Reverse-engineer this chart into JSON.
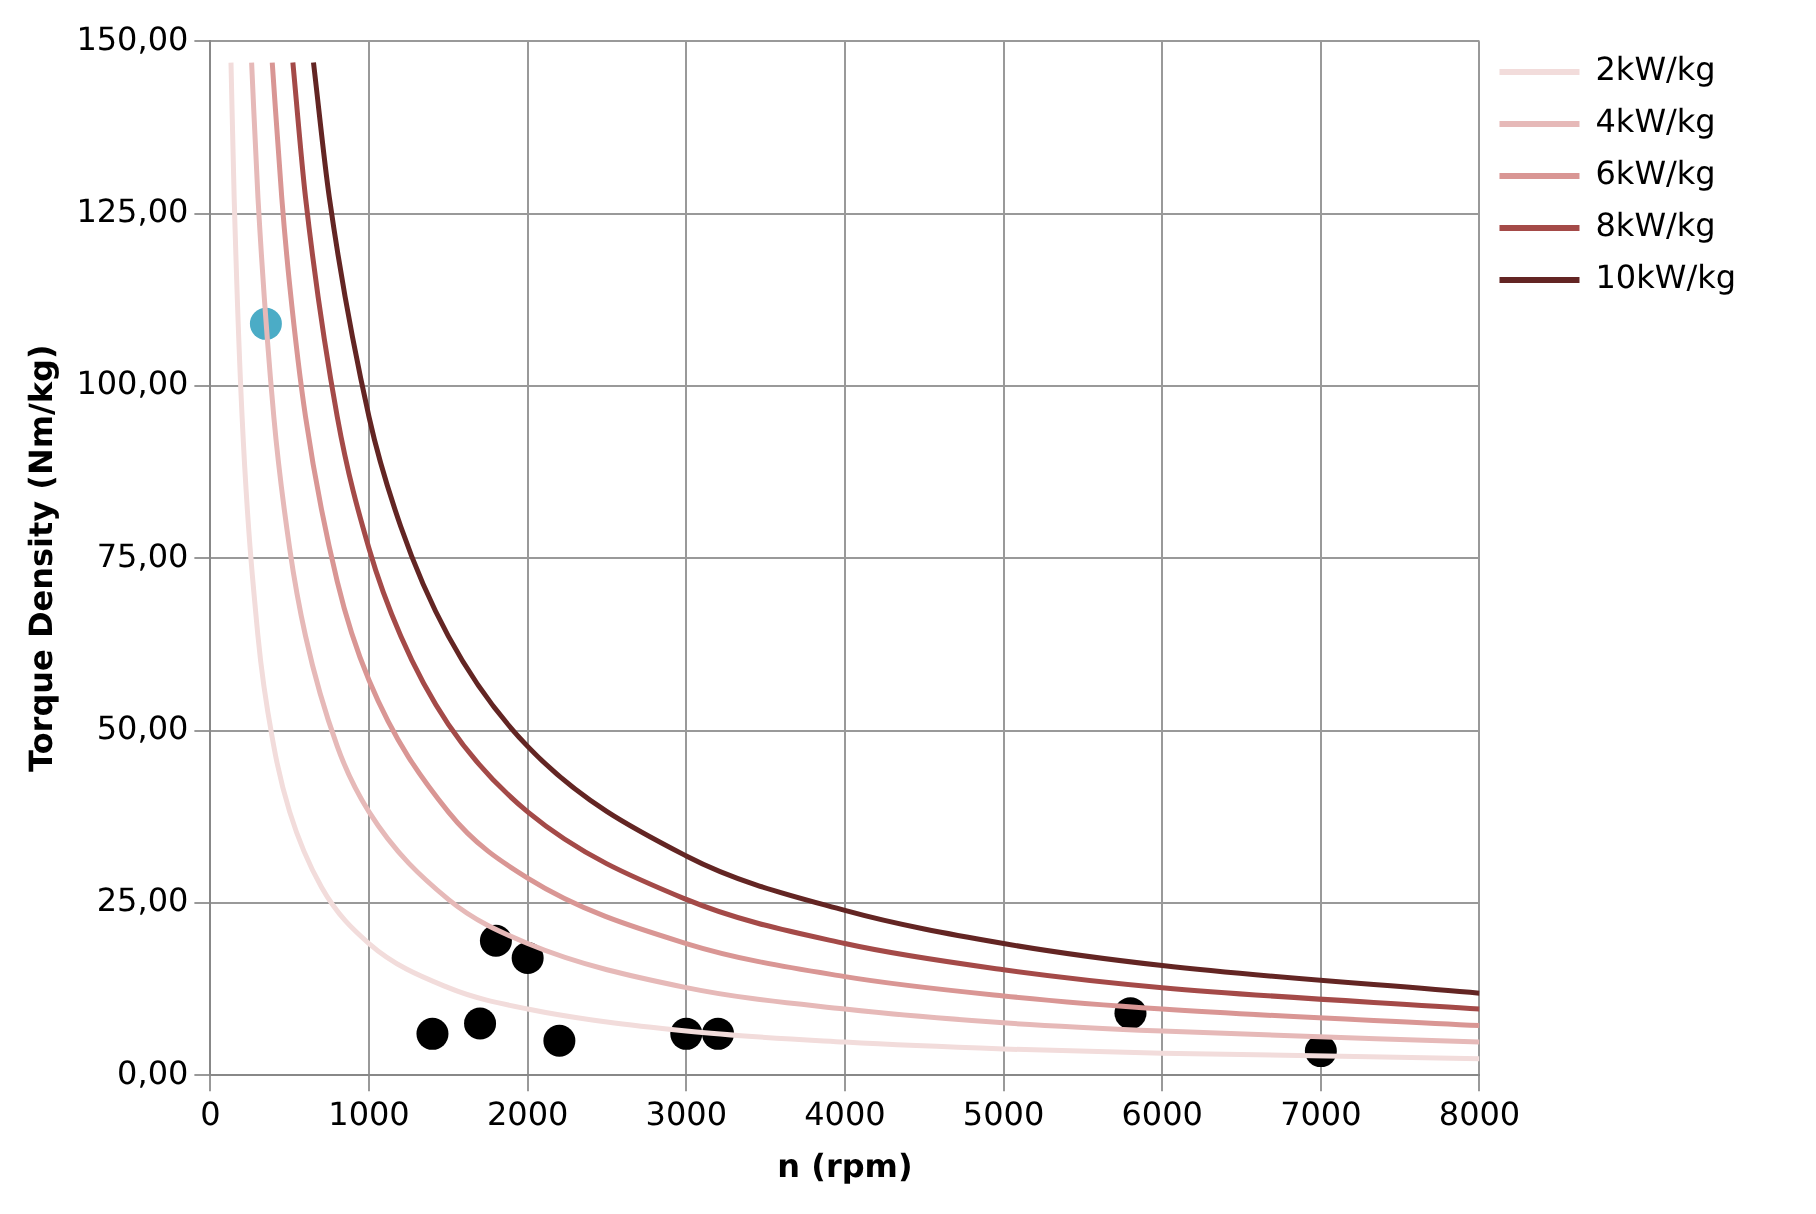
{
  "chart_data": {
    "type": "line",
    "xlabel": "n (rpm)",
    "ylabel": "Torque Density (Nm/kg)",
    "xlim": [
      0,
      8000
    ],
    "xticks": [
      0,
      1000,
      2000,
      3000,
      4000,
      5000,
      6000,
      7000,
      8000
    ],
    "ylim": [
      0,
      150
    ],
    "yticks": [
      {
        "value": 0,
        "label": "0,00"
      },
      {
        "value": 25,
        "label": "25,00"
      },
      {
        "value": 50,
        "label": "50,00"
      },
      {
        "value": 75,
        "label": "75,00"
      },
      {
        "value": 100,
        "label": "100,00"
      },
      {
        "value": 125,
        "label": "125,00"
      },
      {
        "value": 150,
        "label": "150,00"
      }
    ],
    "grid": true,
    "legend": "top right",
    "line_style": "solid",
    "series": [
      {
        "name": "2kW/kg",
        "marker": "none",
        "color": "#f2dcdb",
        "x": [
          130,
          150,
          200,
          300,
          400,
          500,
          700,
          1000,
          1500,
          2000,
          3000,
          4000,
          5000,
          6000,
          8000
        ],
        "values": [
          146.9,
          127.3,
          95.5,
          63.7,
          47.7,
          38.2,
          27.3,
          19.1,
          12.7,
          9.6,
          6.4,
          4.8,
          3.8,
          3.2,
          2.4
        ]
      },
      {
        "name": "4kW/kg",
        "marker": "none",
        "color": "#e6b9b8",
        "x": [
          260,
          300,
          400,
          500,
          600,
          800,
          1000,
          1500,
          2000,
          3000,
          4000,
          5000,
          6000,
          8000
        ],
        "values": [
          146.9,
          127.3,
          95.5,
          76.4,
          63.7,
          47.7,
          38.2,
          25.5,
          19.1,
          12.7,
          9.6,
          7.6,
          6.4,
          4.8
        ]
      },
      {
        "name": "6kW/kg",
        "marker": "none",
        "color": "#d99694",
        "x": [
          390,
          450,
          500,
          600,
          800,
          1000,
          1500,
          2000,
          3000,
          4000,
          5000,
          6000,
          8000
        ],
        "values": [
          146.9,
          127.3,
          114.6,
          95.5,
          71.6,
          57.3,
          38.2,
          28.6,
          19.1,
          14.3,
          11.5,
          9.6,
          7.2
        ]
      },
      {
        "name": "8kW/kg",
        "marker": "none",
        "color": "#a44a48",
        "x": [
          520,
          600,
          800,
          1000,
          1200,
          1500,
          2000,
          3000,
          4000,
          5000,
          6000,
          8000
        ],
        "values": [
          146.9,
          127.3,
          95.5,
          76.4,
          63.7,
          50.9,
          38.2,
          25.5,
          19.1,
          15.3,
          12.7,
          9.6
        ]
      },
      {
        "name": "10kW/kg",
        "marker": "none",
        "color": "#632523",
        "x": [
          650,
          750,
          1000,
          1200,
          1500,
          2000,
          3000,
          4000,
          5000,
          6000,
          8000
        ],
        "values": [
          146.9,
          127.3,
          95.5,
          79.6,
          63.7,
          47.7,
          31.8,
          23.9,
          19.1,
          15.9,
          11.9
        ]
      },
      {
        "type": "scatter",
        "marker": "circle",
        "color": "#4bacc6",
        "x": [
          350
        ],
        "values": [
          109
        ]
      },
      {
        "type": "scatter",
        "marker": "circle",
        "color": "#000000",
        "x": [
          1400,
          1700,
          1800,
          2000,
          2200,
          3000,
          3200,
          5800,
          7000
        ],
        "values": [
          6,
          7.5,
          19.5,
          17,
          5,
          6,
          6,
          9,
          3.5
        ]
      }
    ]
  }
}
